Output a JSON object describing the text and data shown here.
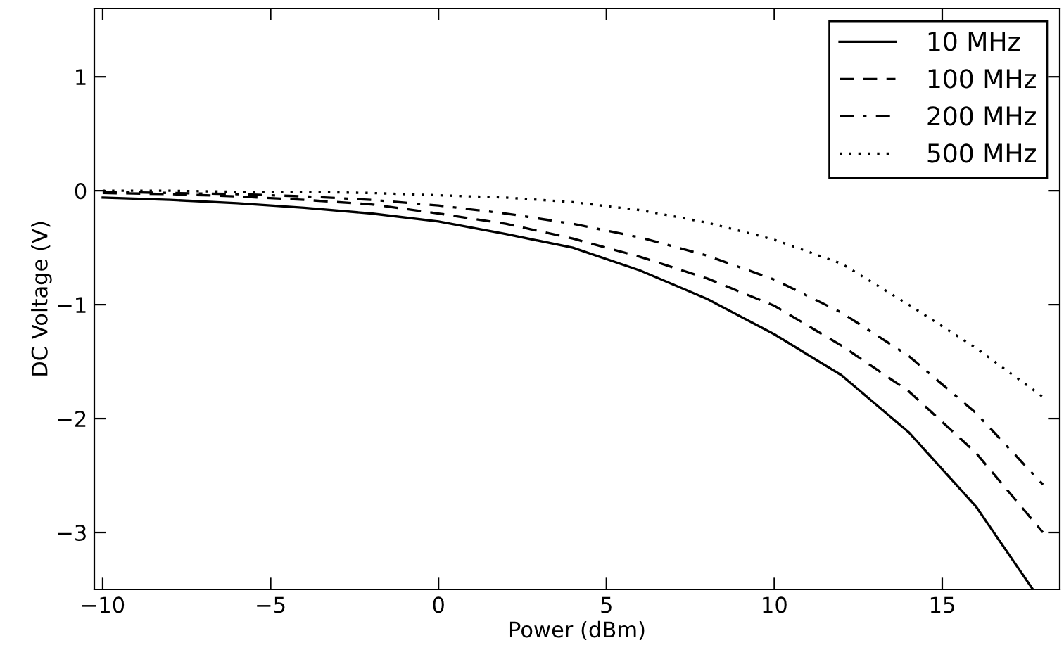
{
  "chart_data": {
    "type": "line",
    "xlabel": "Power (dBm)",
    "ylabel": "DC Voltage (V)",
    "xlim": [
      -10.25,
      18.5
    ],
    "ylim": [
      -3.5,
      1.6
    ],
    "xticks": [
      -10,
      -5,
      0,
      5,
      10,
      15
    ],
    "yticks": [
      -3,
      -2,
      -1,
      0,
      1
    ],
    "grid": false,
    "legend": "top right",
    "series": [
      {
        "name": "10 MHz",
        "color": "#000000",
        "line_style": "solid",
        "x": [
          -10,
          -8,
          -6,
          -4,
          -2,
          0,
          2,
          4,
          6,
          8,
          10,
          12,
          14,
          16,
          17.7
        ],
        "values": [
          -0.06,
          -0.08,
          -0.11,
          -0.15,
          -0.2,
          -0.27,
          -0.38,
          -0.5,
          -0.7,
          -0.95,
          -1.26,
          -1.62,
          -2.12,
          -2.77,
          -3.5
        ]
      },
      {
        "name": "100 MHz",
        "color": "#000000",
        "line_style": "dashed",
        "x": [
          -10,
          -8,
          -6,
          -4,
          -2,
          0,
          2,
          4,
          6,
          8,
          10,
          12,
          14,
          16,
          18
        ],
        "values": [
          -0.02,
          -0.03,
          -0.05,
          -0.08,
          -0.12,
          -0.2,
          -0.29,
          -0.42,
          -0.58,
          -0.77,
          -1.01,
          -1.36,
          -1.76,
          -2.3,
          -3.0
        ]
      },
      {
        "name": "200 MHz",
        "color": "#000000",
        "line_style": "dashdot",
        "x": [
          -10,
          -8,
          -6,
          -4,
          -2,
          0,
          2,
          4,
          6,
          8,
          10,
          12,
          14,
          16,
          18
        ],
        "values": [
          -0.01,
          -0.02,
          -0.03,
          -0.05,
          -0.08,
          -0.13,
          -0.2,
          -0.29,
          -0.41,
          -0.57,
          -0.78,
          -1.07,
          -1.45,
          -1.95,
          -2.58
        ]
      },
      {
        "name": "500 MHz",
        "color": "#000000",
        "line_style": "dotted",
        "x": [
          -10,
          -8,
          -6,
          -4,
          -2,
          0,
          2,
          4,
          6,
          8,
          10,
          12,
          14,
          16,
          18
        ],
        "values": [
          0,
          0,
          -0.01,
          -0.01,
          -0.02,
          -0.04,
          -0.06,
          -0.1,
          -0.17,
          -0.28,
          -0.43,
          -0.64,
          -1.0,
          -1.38,
          -1.81
        ]
      }
    ]
  }
}
